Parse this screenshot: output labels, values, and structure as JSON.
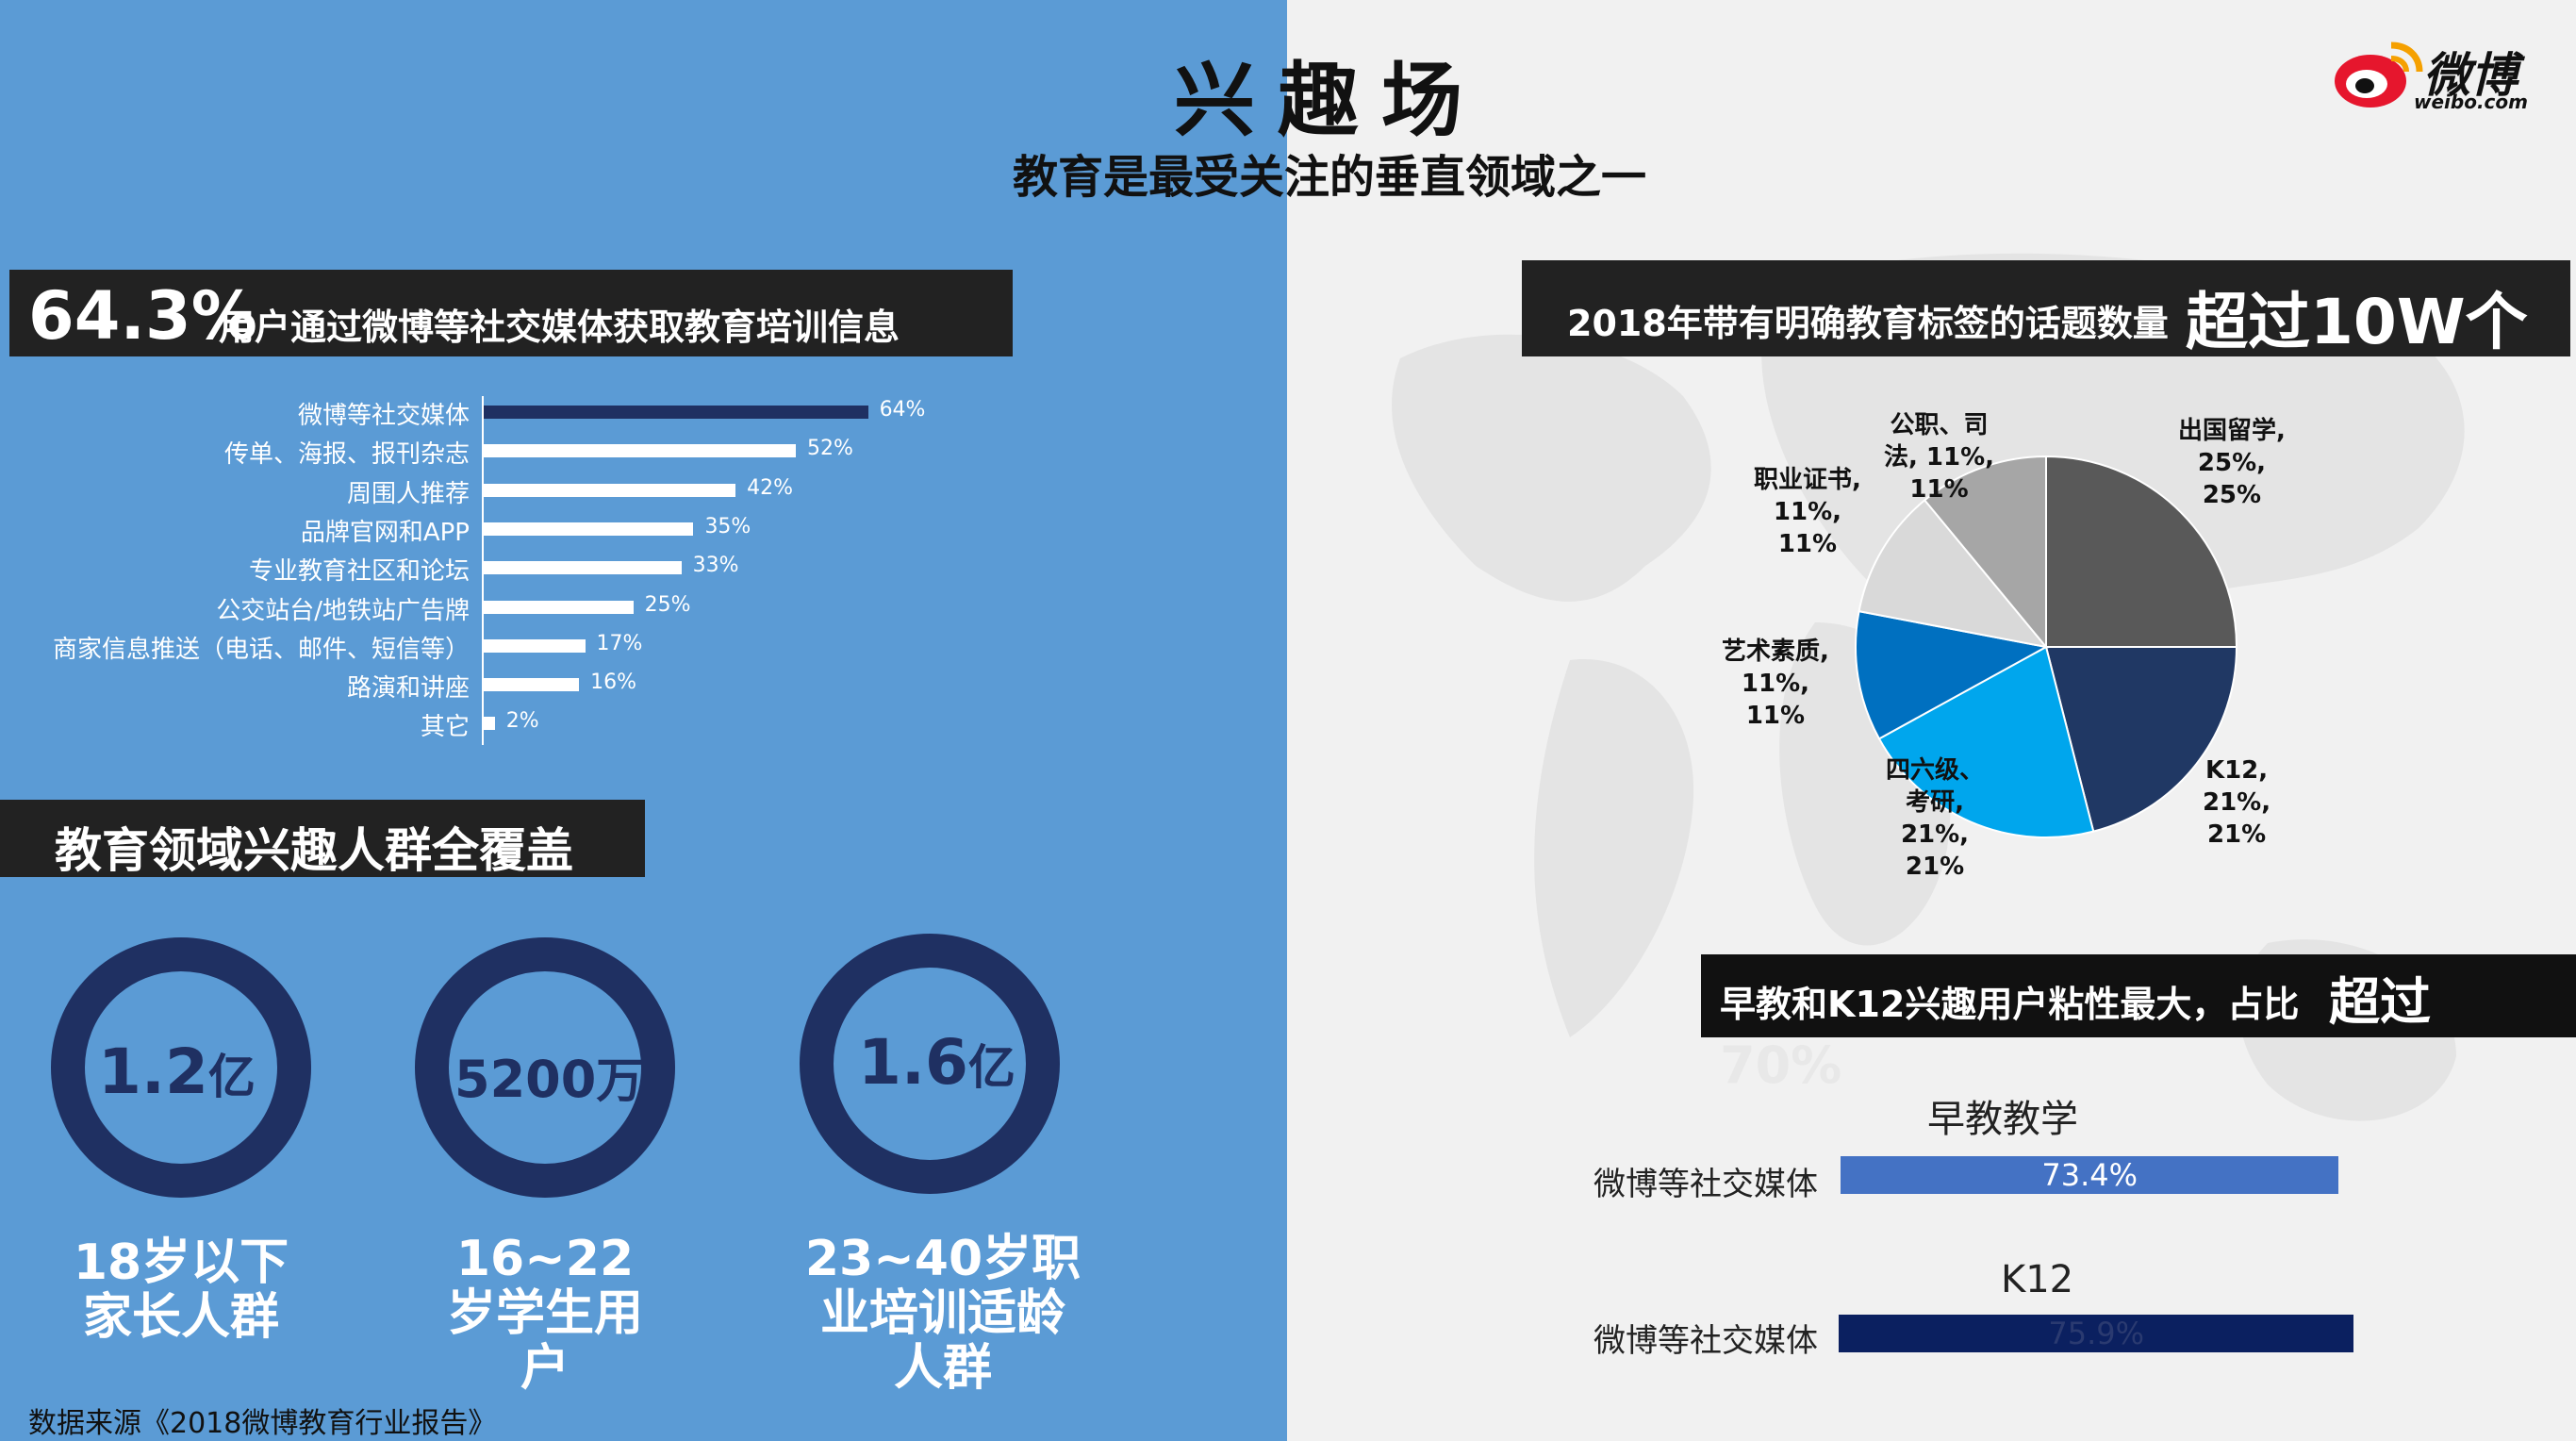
{
  "header": {
    "title": "兴趣场",
    "subtitle": "教育是最受关注的垂直领域之一",
    "logo_text": "微博",
    "logo_sub": "weibo.com"
  },
  "left": {
    "banner_channels": {
      "big": "64.3%",
      "small": "用户通过微博等社交媒体获取教育培训信息"
    },
    "banner_audience": "教育领域兴趣人群全覆盖",
    "audience": [
      {
        "number": "1.2",
        "unit": "亿",
        "caption_lines": [
          "18岁以下",
          "家长人群"
        ]
      },
      {
        "number": "5200",
        "unit": "万",
        "caption_lines": [
          "16~22",
          "岁学生用",
          "户"
        ]
      },
      {
        "number": "1.6",
        "unit": "亿",
        "caption_lines": [
          "23~40岁职",
          "业培训适龄",
          "人群"
        ]
      }
    ],
    "source": "数据来源《2018微博教育行业报告》"
  },
  "right": {
    "banner_topics": {
      "small": "2018年带有明确教育标签的话题数量",
      "big": "超过10W个"
    },
    "banner_stickiness": {
      "small": "早教和K12兴趣用户粘性最大，占比",
      "big": "超过",
      "spill": "70%"
    }
  },
  "colors": {
    "left_bg": "#5b9bd5",
    "ring": "#1f3062",
    "bar_highlight": "#1f3062",
    "pie": [
      "#595959",
      "#203864",
      "#00a6ed",
      "#0070c0",
      "#d9d9d9",
      "#a6a6a6"
    ],
    "early_bar": "#4472c4",
    "k12_bar": "#0b2060"
  },
  "chart_data": [
    {
      "type": "bar",
      "orientation": "horizontal",
      "categories": [
        "微博等社交媒体",
        "传单、海报、报刊杂志",
        "周围人推荐",
        "品牌官网和APP",
        "专业教育社区和论坛",
        "公交站台/地铁站广告牌",
        "商家信息推送（电话、邮件、短信等）",
        "路演和讲座",
        "其它"
      ],
      "values": [
        64,
        52,
        42,
        35,
        33,
        25,
        17,
        16,
        2
      ],
      "value_labels": [
        "64%",
        "52%",
        "42%",
        "35%",
        "33%",
        "25%",
        "17%",
        "16%",
        "2%"
      ],
      "xlim": [
        0,
        100
      ]
    },
    {
      "type": "pie",
      "slices": [
        {
          "label_lines": [
            "出国留学,",
            "25%,",
            "25%"
          ],
          "value": 25
        },
        {
          "label_lines": [
            "K12,",
            "21%,",
            "21%"
          ],
          "value": 21
        },
        {
          "label_lines": [
            "四六级、",
            "考研,",
            "21%,",
            "21%"
          ],
          "value": 21
        },
        {
          "label_lines": [
            "艺术素质,",
            "11%,",
            "11%"
          ],
          "value": 11
        },
        {
          "label_lines": [
            "职业证书,",
            "11%,",
            "11%"
          ],
          "value": 11
        },
        {
          "label_lines": [
            "公职、司",
            "法, 11%,",
            "11%"
          ],
          "value": 11
        }
      ]
    },
    {
      "type": "bar",
      "orientation": "horizontal",
      "title": "早教教学",
      "categories": [
        "微博等社交媒体"
      ],
      "values": [
        73.4
      ],
      "value_labels": [
        "73.4%"
      ]
    },
    {
      "type": "bar",
      "orientation": "horizontal",
      "title": "K12",
      "categories": [
        "微博等社交媒体"
      ],
      "values": [
        75.9
      ],
      "value_labels": [
        "75.9%"
      ]
    }
  ]
}
